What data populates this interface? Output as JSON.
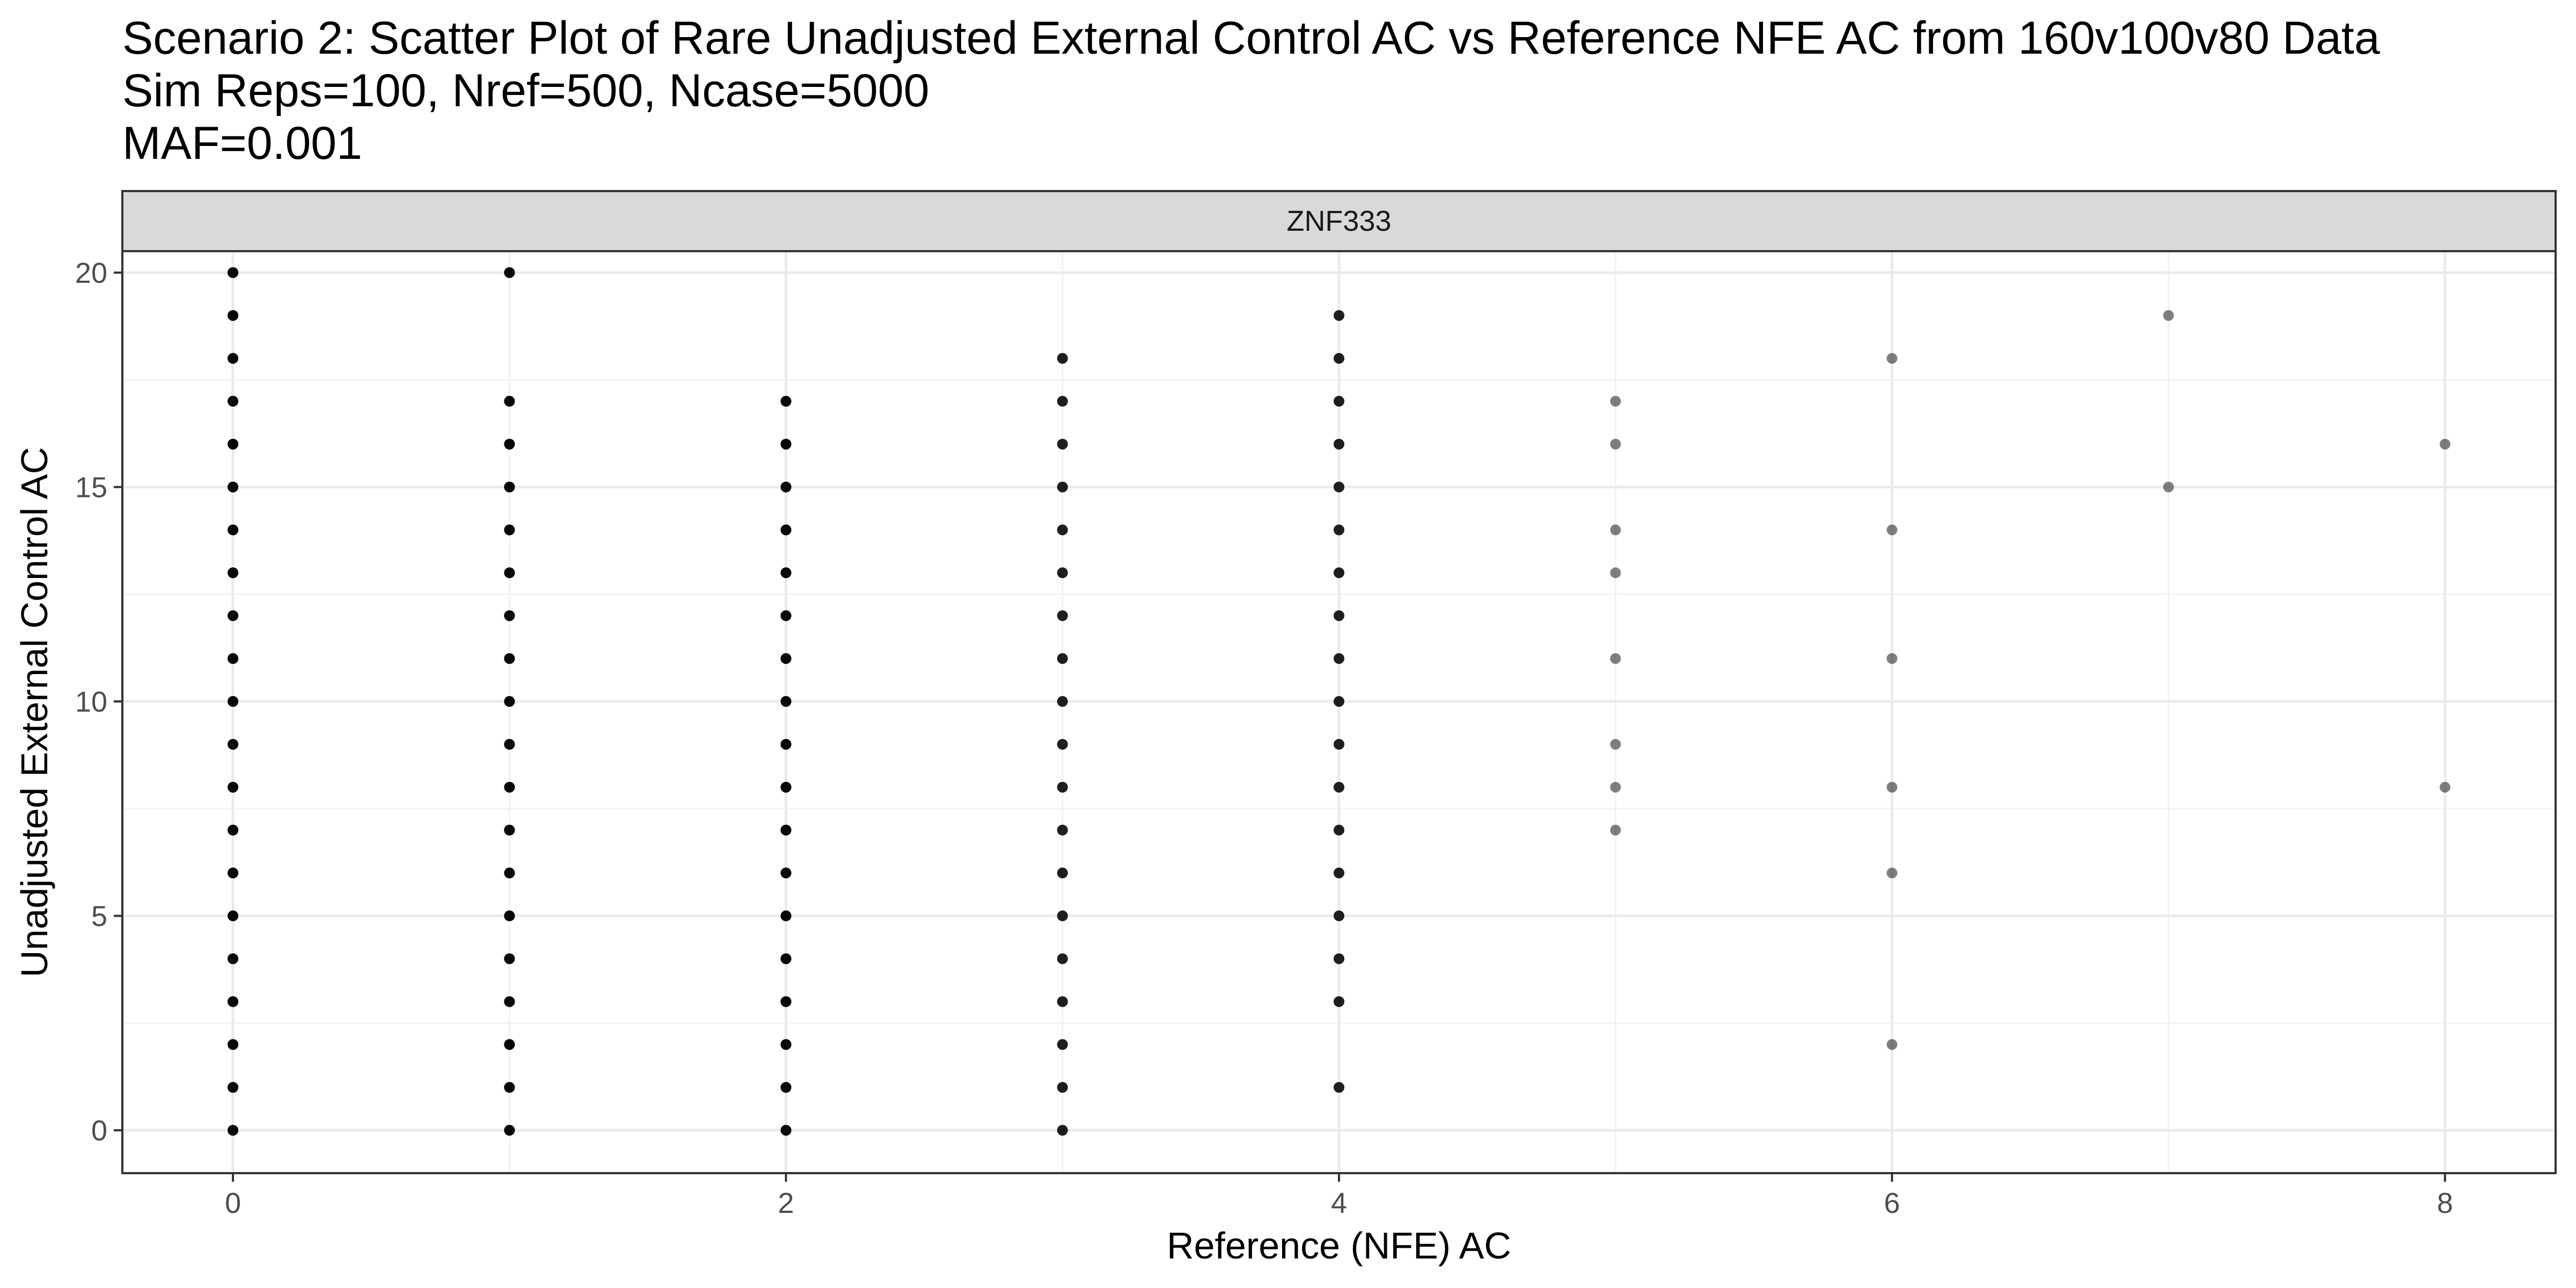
{
  "chart_data": {
    "type": "scatter",
    "title_lines": [
      "Scenario 2: Scatter Plot of Rare Unadjusted External Control AC vs Reference NFE AC from 160v100v80 Data",
      "Sim Reps=100, Nref=500, Ncase=5000",
      "MAF=0.001"
    ],
    "facet_label": "ZNF333",
    "xlabel": "Reference (NFE) AC",
    "ylabel": "Unadjusted External Control AC",
    "xlim": [
      -0.4,
      8.4
    ],
    "ylim": [
      -1,
      20.5
    ],
    "x_ticks": [
      0,
      2,
      4,
      6,
      8
    ],
    "y_ticks": [
      0,
      5,
      10,
      15,
      20
    ],
    "grid": true,
    "point_color": "#000000",
    "point_alpha": 0.5,
    "points": [
      {
        "x": 0,
        "ys": [
          0,
          1,
          2,
          3,
          4,
          5,
          6,
          7,
          8,
          9,
          10,
          11,
          12,
          13,
          14,
          15,
          16,
          17,
          18,
          19,
          20
        ],
        "overlap": "high"
      },
      {
        "x": 1,
        "ys": [
          0,
          1,
          2,
          3,
          4,
          5,
          6,
          7,
          8,
          9,
          10,
          11,
          12,
          13,
          14,
          15,
          16,
          17,
          20
        ],
        "overlap": "high"
      },
      {
        "x": 2,
        "ys": [
          0,
          1,
          2,
          3,
          4,
          5,
          6,
          7,
          8,
          9,
          10,
          11,
          12,
          13,
          14,
          15,
          16,
          17
        ],
        "overlap": "high"
      },
      {
        "x": 3,
        "ys": [
          0,
          1,
          2,
          3,
          4,
          5,
          6,
          7,
          8,
          9,
          10,
          11,
          12,
          13,
          14,
          15,
          16,
          17,
          18
        ],
        "overlap": "medium"
      },
      {
        "x": 4,
        "ys": [
          1,
          3,
          4,
          5,
          6,
          7,
          8,
          9,
          10,
          11,
          12,
          13,
          14,
          15,
          16,
          17,
          18,
          19
        ],
        "overlap": "medium"
      },
      {
        "x": 5,
        "ys": [
          7,
          8,
          9,
          11,
          13,
          14,
          16,
          17
        ],
        "overlap": "low"
      },
      {
        "x": 6,
        "ys": [
          2,
          6,
          8,
          11,
          14,
          18
        ],
        "overlap": "low"
      },
      {
        "x": 7,
        "ys": [
          15,
          19
        ],
        "overlap": "low"
      },
      {
        "x": 8,
        "ys": [
          8,
          16
        ],
        "overlap": "low"
      }
    ]
  }
}
